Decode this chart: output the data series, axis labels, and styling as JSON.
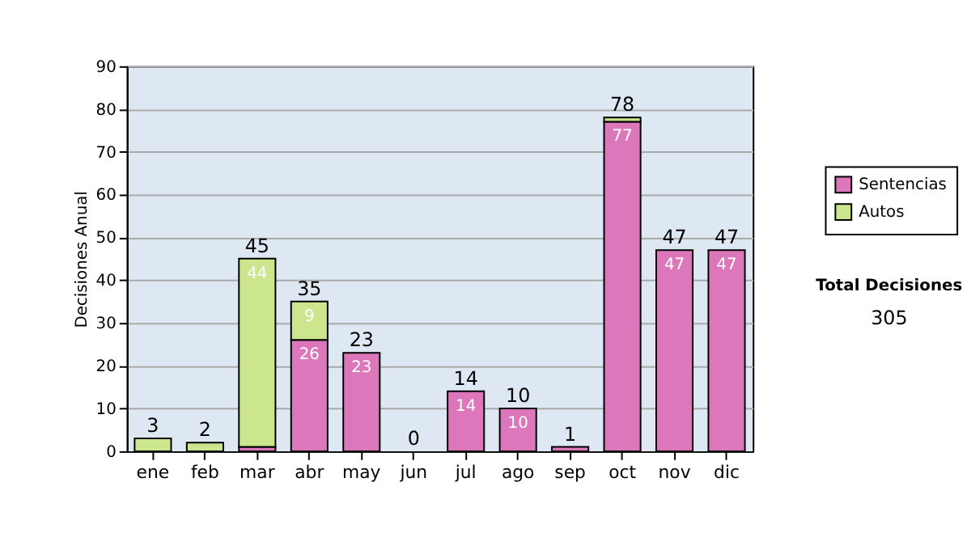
{
  "chart_data": {
    "type": "bar",
    "stacked": true,
    "ylabel": "Decisiones Anual",
    "categories": [
      "ene",
      "feb",
      "mar",
      "abr",
      "may",
      "jun",
      "jul",
      "ago",
      "sep",
      "oct",
      "nov",
      "dic"
    ],
    "series": [
      {
        "name": "Sentencias",
        "color": "#dd77bb",
        "values": [
          0,
          0,
          1,
          26,
          23,
          0,
          14,
          10,
          1,
          77,
          47,
          47
        ],
        "value_labels": [
          null,
          null,
          null,
          "26",
          "23",
          null,
          "14",
          "10",
          null,
          "77",
          "47",
          "47"
        ]
      },
      {
        "name": "Autos",
        "color": "#cce68e",
        "values": [
          3,
          2,
          44,
          9,
          0,
          0,
          0,
          0,
          0,
          1,
          0,
          0
        ],
        "value_labels": [
          null,
          null,
          "44",
          "9",
          null,
          null,
          null,
          null,
          null,
          null,
          null,
          null
        ]
      }
    ],
    "totals": [
      "3",
      "2",
      "45",
      "35",
      "23",
      "0",
      "14",
      "10",
      "1",
      "78",
      "47",
      "47"
    ],
    "ylim": [
      0,
      90
    ],
    "yticks": [
      0,
      10,
      20,
      30,
      40,
      50,
      60,
      70,
      80,
      90
    ],
    "grid": "y",
    "legend": "right",
    "annotations": [
      "Total Decisiones",
      "305"
    ]
  }
}
